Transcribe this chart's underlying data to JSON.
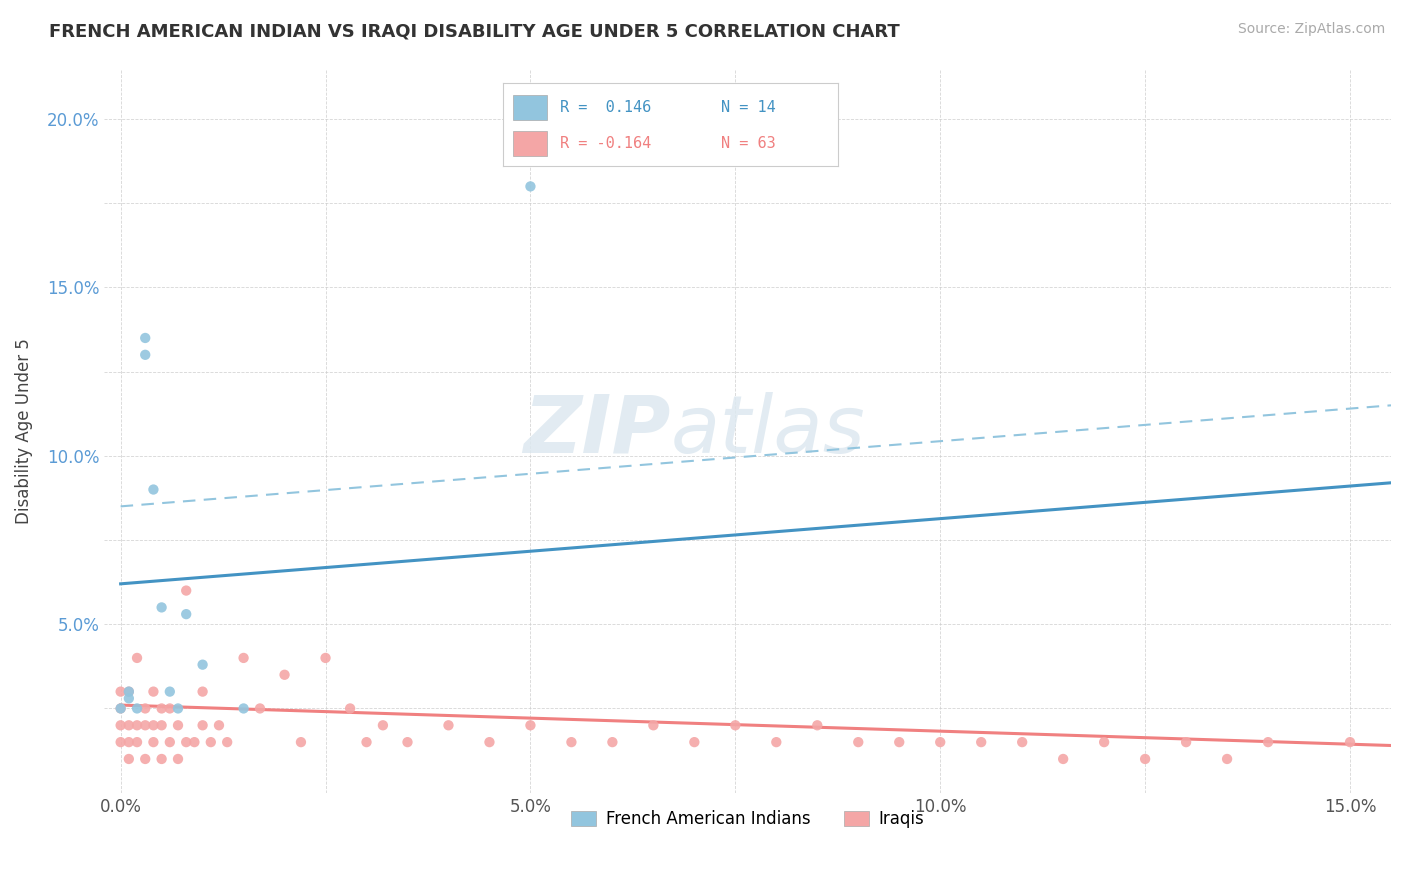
{
  "title": "FRENCH AMERICAN INDIAN VS IRAQI DISABILITY AGE UNDER 5 CORRELATION CHART",
  "source": "Source: ZipAtlas.com",
  "ylabel_text": "Disability Age Under 5",
  "watermark_zip": "ZIP",
  "watermark_atlas": "atlas",
  "xlim": [
    -0.002,
    0.155
  ],
  "ylim": [
    0.0,
    0.215
  ],
  "xtick_values": [
    0.0,
    0.05,
    0.1,
    0.15
  ],
  "xtick_labels": [
    "0.0%",
    "5.0%",
    "10.0%",
    "15.0%"
  ],
  "ytick_values": [
    0.0,
    0.05,
    0.1,
    0.15,
    0.2
  ],
  "ytick_labels": [
    "",
    "5.0%",
    "10.0%",
    "15.0%",
    "20.0%"
  ],
  "color_blue": "#92c5de",
  "color_pink": "#f4a6a6",
  "trendline_blue_color": "#4393c3",
  "trendline_pink_color": "#f08080",
  "trendline_dashed_color": "#92c5de",
  "blue_scatter_x": [
    0.0,
    0.001,
    0.001,
    0.002,
    0.003,
    0.003,
    0.004,
    0.005,
    0.006,
    0.007,
    0.008,
    0.01,
    0.015,
    0.05
  ],
  "blue_scatter_y": [
    0.025,
    0.028,
    0.03,
    0.025,
    0.13,
    0.135,
    0.09,
    0.055,
    0.03,
    0.025,
    0.053,
    0.038,
    0.025,
    0.18
  ],
  "pink_scatter_x": [
    0.0,
    0.0,
    0.0,
    0.0,
    0.001,
    0.001,
    0.001,
    0.001,
    0.002,
    0.002,
    0.002,
    0.003,
    0.003,
    0.003,
    0.004,
    0.004,
    0.004,
    0.005,
    0.005,
    0.005,
    0.006,
    0.006,
    0.007,
    0.007,
    0.008,
    0.008,
    0.009,
    0.01,
    0.01,
    0.011,
    0.012,
    0.013,
    0.015,
    0.017,
    0.02,
    0.022,
    0.025,
    0.028,
    0.03,
    0.032,
    0.035,
    0.04,
    0.045,
    0.05,
    0.055,
    0.06,
    0.065,
    0.07,
    0.075,
    0.08,
    0.085,
    0.09,
    0.095,
    0.1,
    0.105,
    0.11,
    0.115,
    0.12,
    0.125,
    0.13,
    0.135,
    0.14,
    0.15
  ],
  "pink_scatter_y": [
    0.015,
    0.02,
    0.025,
    0.03,
    0.01,
    0.015,
    0.02,
    0.03,
    0.015,
    0.02,
    0.04,
    0.01,
    0.02,
    0.025,
    0.015,
    0.02,
    0.03,
    0.01,
    0.02,
    0.025,
    0.015,
    0.025,
    0.01,
    0.02,
    0.015,
    0.06,
    0.015,
    0.02,
    0.03,
    0.015,
    0.02,
    0.015,
    0.04,
    0.025,
    0.035,
    0.015,
    0.04,
    0.025,
    0.015,
    0.02,
    0.015,
    0.02,
    0.015,
    0.02,
    0.015,
    0.015,
    0.02,
    0.015,
    0.02,
    0.015,
    0.02,
    0.015,
    0.015,
    0.015,
    0.015,
    0.015,
    0.01,
    0.015,
    0.01,
    0.015,
    0.01,
    0.015,
    0.015
  ],
  "blue_trend_x": [
    0.0,
    0.155
  ],
  "blue_trend_y": [
    0.062,
    0.092
  ],
  "pink_trend_x": [
    0.0,
    0.155
  ],
  "pink_trend_y": [
    0.026,
    0.014
  ],
  "dash_trend_x": [
    0.0,
    0.155
  ],
  "dash_trend_y": [
    0.085,
    0.115
  ],
  "legend_blue_r": "R =  0.146",
  "legend_blue_n": "N = 14",
  "legend_pink_r": "R = -0.164",
  "legend_pink_n": "N = 63",
  "bottom_legend_blue": "French American Indians",
  "bottom_legend_pink": "Iraqis"
}
